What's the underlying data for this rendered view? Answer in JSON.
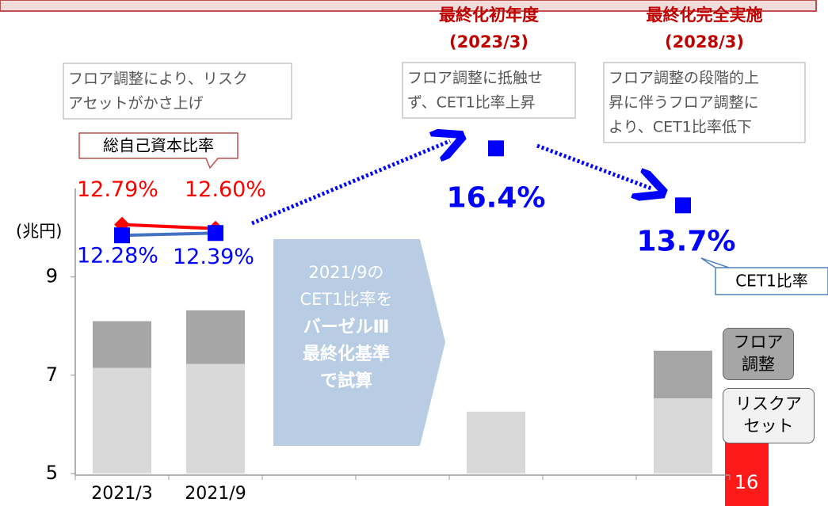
{
  "chart_data": {
    "type": "bar",
    "stacked": true,
    "ylabel": "(兆円)",
    "categories": [
      "2021/3",
      "2021/9",
      null,
      null,
      null,
      null,
      null
    ],
    "ylim": [
      5,
      10.8
    ],
    "yticks": [
      5,
      7,
      9
    ],
    "y2lim": [
      1,
      14.5
    ],
    "series": [
      {
        "name": "リスクアセット",
        "color": "#d9d9d9",
        "values": [
          7.15,
          7.23,
          null,
          null,
          6.26,
          null,
          6.53
        ]
      },
      {
        "name": "フロア調整",
        "color": "#a6a6a6",
        "values": [
          0.95,
          1.09,
          null,
          null,
          null,
          null,
          0.97
        ]
      },
      {
        "name": "総自己資本比率",
        "type": "line",
        "axis": "y2",
        "color": "#ff0000",
        "values": [
          12.79,
          12.6,
          null,
          null,
          null,
          null,
          null
        ],
        "value_labels": [
          "12.79%",
          "12.60%",
          null,
          null,
          null,
          null,
          null
        ]
      },
      {
        "name": "CET1比率",
        "type": "line",
        "axis": "y2",
        "color": "#0000ff",
        "values": [
          12.28,
          12.39,
          null,
          null,
          16.4,
          null,
          13.7
        ],
        "value_labels": [
          "12.28%",
          "12.39%",
          null,
          null,
          "16.4%",
          null,
          "13.7%"
        ]
      }
    ]
  },
  "notes": [
    {
      "lines": [
        "フロア調整により、リスク",
        "アセットがかさ上げ"
      ]
    },
    {
      "title": "最終化初年度",
      "subtitle": "(2023/3)",
      "lines": [
        "フロア調整に抵触せ",
        "ず、CET1比率上昇"
      ]
    },
    {
      "title": "最終化完全実施",
      "subtitle": "(2028/3)",
      "lines": [
        "フロア調整の段階的上",
        "昇に伴うフロア調整に",
        "より、CET1比率低下"
      ]
    }
  ],
  "arrow_text": {
    "lines": [
      "2021/9の",
      "CET1比率を"
    ],
    "bold_lines": [
      "バーゼルⅢ",
      "最終化基準",
      "で試算"
    ]
  },
  "page_number": "16"
}
